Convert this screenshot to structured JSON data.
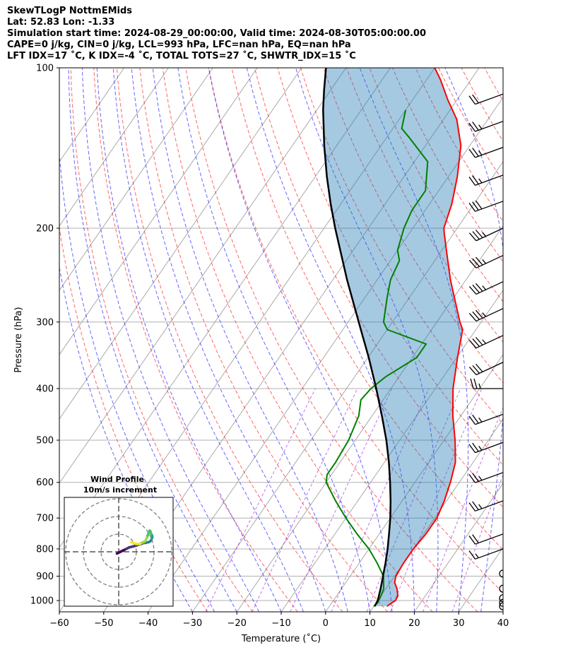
{
  "header": {
    "line1": "SkewTLogP NottmEMids",
    "line2": "Lat: 52.83   Lon: -1.33",
    "line3": "Simulation start time: 2024-08-29_00:00:00, Valid time: 2024-08-30T05:00:00.00",
    "line4": "CAPE=0 j/kg, CIN=0 j/kg, LCL=993 hPa, LFC=nan hPa, EQ=nan hPa",
    "line5": "LFT IDX=17 ˚C, K IDX=-4 ˚C, TOTAL TOTS=27 ˚C, SHWTR_IDX=15 ˚C"
  },
  "inset": {
    "title1": "Wind Profile",
    "title2": "10m/s increment"
  },
  "chart_data": {
    "type": "line",
    "xlabel": "Temperature (˚C)",
    "ylabel": "Pressure (hPa)",
    "xlim": [
      -60,
      40
    ],
    "ylim": [
      1050,
      100
    ],
    "yscale": "log",
    "xticks": [
      -60,
      -50,
      -40,
      -30,
      -20,
      -10,
      0,
      10,
      20,
      30,
      40
    ],
    "yticks": [
      100,
      200,
      300,
      400,
      500,
      600,
      700,
      800,
      900,
      1000
    ],
    "grid": true,
    "series": [
      {
        "kind": "temperature",
        "color": "#ff0000",
        "points": [
          [
            1025,
            13.0
          ],
          [
            1010,
            13.5
          ],
          [
            1000,
            14.0
          ],
          [
            980,
            13.8
          ],
          [
            950,
            12.5
          ],
          [
            925,
            11.0
          ],
          [
            900,
            10.3
          ],
          [
            850,
            10.0
          ],
          [
            800,
            10.0
          ],
          [
            750,
            10.5
          ],
          [
            700,
            10.5
          ],
          [
            650,
            9.5
          ],
          [
            600,
            8.0
          ],
          [
            550,
            6.0
          ],
          [
            500,
            2.5
          ],
          [
            450,
            -1.8
          ],
          [
            400,
            -6.0
          ],
          [
            350,
            -9.8
          ],
          [
            310,
            -13.0
          ],
          [
            300,
            -14.8
          ],
          [
            250,
            -23.5
          ],
          [
            220,
            -29.0
          ],
          [
            205,
            -32.0
          ],
          [
            200,
            -33.0
          ],
          [
            180,
            -35.0
          ],
          [
            160,
            -38.0
          ],
          [
            140,
            -42.0
          ],
          [
            125,
            -47.0
          ],
          [
            115,
            -52.0
          ],
          [
            105,
            -57.0
          ],
          [
            100,
            -60.0
          ]
        ]
      },
      {
        "kind": "dewpoint",
        "color": "#008000",
        "points": [
          [
            1025,
            10.0
          ],
          [
            1010,
            10.3
          ],
          [
            980,
            10.0
          ],
          [
            950,
            9.5
          ],
          [
            900,
            7.5
          ],
          [
            850,
            4.0
          ],
          [
            800,
            0.0
          ],
          [
            750,
            -5.0
          ],
          [
            700,
            -10.0
          ],
          [
            650,
            -15.0
          ],
          [
            600,
            -20.0
          ],
          [
            580,
            -21.0
          ],
          [
            550,
            -21.0
          ],
          [
            500,
            -21.5
          ],
          [
            450,
            -23.0
          ],
          [
            420,
            -25.0
          ],
          [
            400,
            -24.5
          ],
          [
            380,
            -23.0
          ],
          [
            350,
            -19.0
          ],
          [
            330,
            -19.0
          ],
          [
            310,
            -30.0
          ],
          [
            300,
            -32.0
          ],
          [
            270,
            -35.0
          ],
          [
            250,
            -37.0
          ],
          [
            230,
            -38.0
          ],
          [
            220,
            -40.0
          ],
          [
            200,
            -42.0
          ],
          [
            185,
            -43.0
          ],
          [
            170,
            -43.0
          ],
          [
            150,
            -47.0
          ],
          [
            135,
            -55.0
          ],
          [
            130,
            -58.0
          ],
          [
            120,
            -60.0
          ]
        ]
      },
      {
        "kind": "parcel",
        "color": "#000000",
        "points": [
          [
            1025,
            10.2
          ],
          [
            1000,
            10.0
          ],
          [
            950,
            8.8
          ],
          [
            900,
            7.4
          ],
          [
            850,
            5.9
          ],
          [
            800,
            4.2
          ],
          [
            750,
            2.2
          ],
          [
            700,
            0.0
          ],
          [
            650,
            -2.6
          ],
          [
            600,
            -5.6
          ],
          [
            550,
            -9.0
          ],
          [
            500,
            -13.0
          ],
          [
            450,
            -17.8
          ],
          [
            400,
            -23.3
          ],
          [
            350,
            -29.8
          ],
          [
            300,
            -37.6
          ],
          [
            250,
            -46.8
          ],
          [
            200,
            -57.5
          ],
          [
            180,
            -62.3
          ],
          [
            160,
            -67.4
          ],
          [
            140,
            -72.8
          ],
          [
            120,
            -78.6
          ],
          [
            110,
            -81.5
          ],
          [
            100,
            -84.5
          ]
        ]
      }
    ],
    "wind_barbs": [
      {
        "p": 1025,
        "speed_kt": 0
      },
      {
        "p": 1010,
        "speed_kt": 0
      },
      {
        "p": 990,
        "speed_kt": 0
      },
      {
        "p": 950,
        "speed_kt": 0
      },
      {
        "p": 890,
        "speed_kt": 0
      },
      {
        "p": 800,
        "dir": 250,
        "speed_kt": 15
      },
      {
        "p": 750,
        "dir": 250,
        "speed_kt": 20
      },
      {
        "p": 650,
        "dir": 250,
        "speed_kt": 25
      },
      {
        "p": 575,
        "dir": 250,
        "speed_kt": 25
      },
      {
        "p": 505,
        "dir": 250,
        "speed_kt": 25
      },
      {
        "p": 447,
        "dir": 250,
        "speed_kt": 25
      },
      {
        "p": 400,
        "dir": 270,
        "speed_kt": 25
      },
      {
        "p": 357,
        "dir": 245,
        "speed_kt": 30
      },
      {
        "p": 318,
        "dir": 245,
        "speed_kt": 35
      },
      {
        "p": 283,
        "dir": 245,
        "speed_kt": 35
      },
      {
        "p": 252,
        "dir": 245,
        "speed_kt": 35
      },
      {
        "p": 225,
        "dir": 245,
        "speed_kt": 35
      },
      {
        "p": 200,
        "dir": 245,
        "speed_kt": 35
      },
      {
        "p": 178,
        "dir": 250,
        "speed_kt": 30
      },
      {
        "p": 159,
        "dir": 250,
        "speed_kt": 25
      },
      {
        "p": 141,
        "dir": 250,
        "speed_kt": 25
      },
      {
        "p": 126,
        "dir": 250,
        "speed_kt": 25
      },
      {
        "p": 112,
        "dir": 250,
        "speed_kt": 20
      }
    ],
    "hodograph": {
      "rings_ms": [
        10,
        20,
        30
      ],
      "points": [
        [
          -1,
          -1
        ],
        [
          0,
          -0.5
        ],
        [
          1,
          0
        ],
        [
          2,
          0.5
        ],
        [
          4,
          1.5
        ],
        [
          6,
          2.5
        ],
        [
          8,
          3.0
        ],
        [
          10,
          3.5
        ],
        [
          11,
          4.0
        ],
        [
          13,
          4.5
        ],
        [
          14,
          5
        ],
        [
          15,
          5
        ],
        [
          17,
          5.5
        ],
        [
          18,
          6
        ],
        [
          18.5,
          7
        ],
        [
          19,
          8
        ],
        [
          19,
          9
        ],
        [
          18.5,
          10
        ],
        [
          18,
          11.5
        ],
        [
          17.5,
          12
        ],
        [
          17,
          11
        ],
        [
          16,
          8
        ],
        [
          15,
          6
        ],
        [
          13,
          5
        ],
        [
          12,
          4.5
        ],
        [
          10,
          4.5
        ],
        [
          8,
          5
        ],
        [
          7,
          5.5
        ]
      ]
    }
  }
}
